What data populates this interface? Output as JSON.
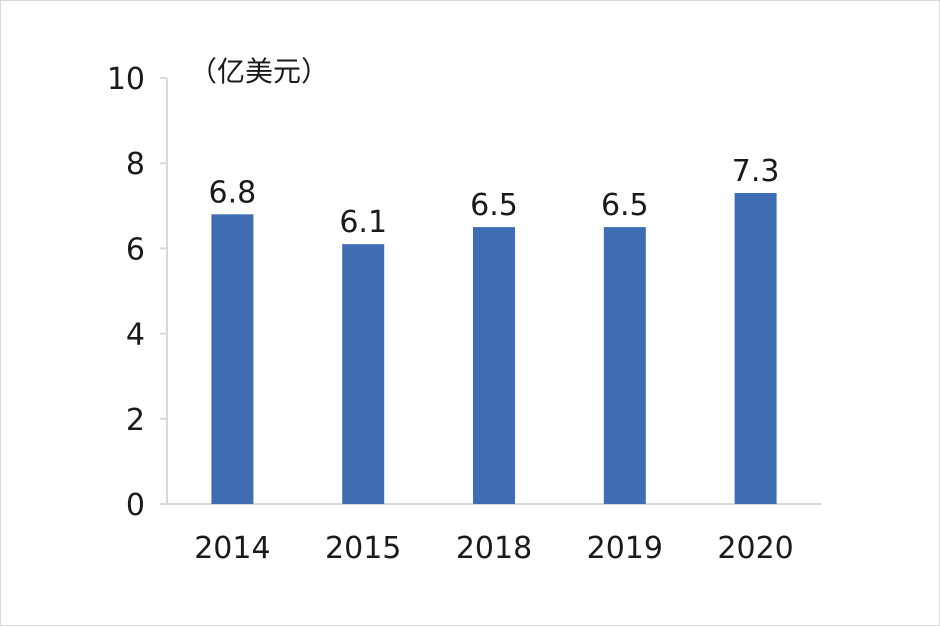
{
  "chart_data": {
    "type": "bar",
    "unit_label": "（亿美元）",
    "categories": [
      "2014",
      "2015",
      "2018",
      "2019",
      "2020"
    ],
    "values": [
      6.8,
      6.1,
      6.5,
      6.5,
      7.3
    ],
    "value_labels": [
      "6.8",
      "6.1",
      "6.5",
      "6.5",
      "7.3"
    ],
    "ylim": [
      0,
      10
    ],
    "yticks": [
      "0",
      "2",
      "4",
      "6",
      "8",
      "10"
    ],
    "grid": false,
    "bar_color": "#3f6db4",
    "axis_color": "#d9d9d9"
  }
}
